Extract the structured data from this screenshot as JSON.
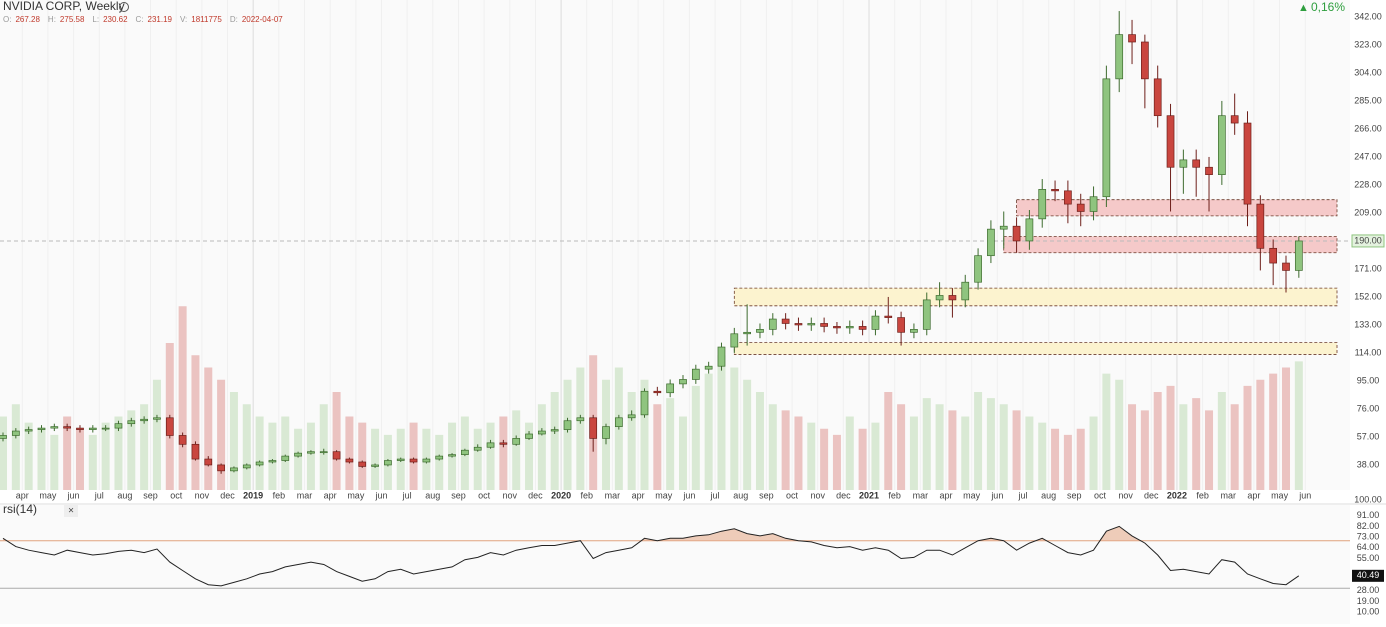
{
  "chart_data": {
    "type": "candlestick",
    "title": "NVIDIA CORP, Weekly",
    "info": [
      {
        "label": "O:",
        "value": "267.28"
      },
      {
        "label": "H:",
        "value": "275.58"
      },
      {
        "label": "L:",
        "value": "230.62"
      },
      {
        "label": "C:",
        "value": "231.19"
      },
      {
        "label": "V:",
        "value": "1811775"
      },
      {
        "label": "D:",
        "value": "2022-04-07"
      }
    ],
    "change": "0,16%",
    "last_price_label": "190.00",
    "volume_scale_label": "100.00",
    "up_color": "#8fc47f",
    "down_color": "#c9463f",
    "volume_ylim": [
      0,
      400
    ],
    "ylim": [
      21,
      353.5
    ],
    "yticks": [
      {
        "value": 38,
        "label": "38.00"
      },
      {
        "value": 57,
        "label": "57.00"
      },
      {
        "value": 76,
        "label": "76.00"
      },
      {
        "value": 95,
        "label": "95.00"
      },
      {
        "value": 114,
        "label": "114.00"
      },
      {
        "value": 133,
        "label": "133.00"
      },
      {
        "value": 152,
        "label": "152.00"
      },
      {
        "value": 171,
        "label": "171.00"
      },
      {
        "value": 209,
        "label": "209.00"
      },
      {
        "value": 228,
        "label": "228.00"
      },
      {
        "value": 247,
        "label": "247.00"
      },
      {
        "value": 266,
        "label": "266.00"
      },
      {
        "value": 285,
        "label": "285.00"
      },
      {
        "value": 304,
        "label": "304.00"
      },
      {
        "value": 323,
        "label": "323.00"
      },
      {
        "value": 342,
        "label": "342.00"
      }
    ],
    "xticks": [
      {
        "value": 1.5,
        "label": "apr"
      },
      {
        "value": 3.5,
        "label": "may"
      },
      {
        "value": 5.5,
        "label": "jun"
      },
      {
        "value": 7.5,
        "label": "jul"
      },
      {
        "value": 9.5,
        "label": "aug"
      },
      {
        "value": 11.5,
        "label": "sep"
      },
      {
        "value": 13.5,
        "label": "oct"
      },
      {
        "value": 15.5,
        "label": "nov"
      },
      {
        "value": 17.5,
        "label": "dec"
      },
      {
        "value": 19.5,
        "label": "2019"
      },
      {
        "value": 21.5,
        "label": "feb"
      },
      {
        "value": 23.5,
        "label": "mar"
      },
      {
        "value": 25.5,
        "label": "apr"
      },
      {
        "value": 27.5,
        "label": "may"
      },
      {
        "value": 29.5,
        "label": "jun"
      },
      {
        "value": 31.5,
        "label": "jul"
      },
      {
        "value": 33.5,
        "label": "aug"
      },
      {
        "value": 35.5,
        "label": "sep"
      },
      {
        "value": 37.5,
        "label": "oct"
      },
      {
        "value": 39.5,
        "label": "nov"
      },
      {
        "value": 41.5,
        "label": "dec"
      },
      {
        "value": 43.5,
        "label": "2020"
      },
      {
        "value": 45.5,
        "label": "feb"
      },
      {
        "value": 47.5,
        "label": "mar"
      },
      {
        "value": 49.5,
        "label": "apr"
      },
      {
        "value": 51.5,
        "label": "may"
      },
      {
        "value": 53.5,
        "label": "jun"
      },
      {
        "value": 55.5,
        "label": "jul"
      },
      {
        "value": 57.5,
        "label": "aug"
      },
      {
        "value": 59.5,
        "label": "sep"
      },
      {
        "value": 61.5,
        "label": "oct"
      },
      {
        "value": 63.5,
        "label": "nov"
      },
      {
        "value": 65.5,
        "label": "dec"
      },
      {
        "value": 67.5,
        "label": "2021"
      },
      {
        "value": 69.5,
        "label": "feb"
      },
      {
        "value": 71.5,
        "label": "mar"
      },
      {
        "value": 73.5,
        "label": "apr"
      },
      {
        "value": 75.5,
        "label": "may"
      },
      {
        "value": 77.5,
        "label": "jun"
      },
      {
        "value": 79.5,
        "label": "jul"
      },
      {
        "value": 81.5,
        "label": "aug"
      },
      {
        "value": 83.5,
        "label": "sep"
      },
      {
        "value": 85.5,
        "label": "oct"
      },
      {
        "value": 87.5,
        "label": "nov"
      },
      {
        "value": 89.5,
        "label": "dec"
      },
      {
        "value": 91.5,
        "label": "2022"
      },
      {
        "value": 93.5,
        "label": "feb"
      },
      {
        "value": 95.5,
        "label": "mar"
      },
      {
        "value": 97.5,
        "label": "apr"
      },
      {
        "value": 99.5,
        "label": "may"
      },
      {
        "value": 101.5,
        "label": "jun"
      }
    ],
    "zones": [
      {
        "from": 79,
        "low": 207,
        "high": 218,
        "color": "#f5c9c9"
      },
      {
        "from": 78,
        "low": 182,
        "high": 193,
        "color": "#f5c9c9"
      },
      {
        "from": 57,
        "low": 146,
        "high": 158,
        "color": "#fcf3cf"
      },
      {
        "from": 57,
        "low": 113,
        "high": 121,
        "color": "#fcf3cf"
      }
    ],
    "open": [
      56,
      58,
      61,
      62,
      63,
      64,
      63,
      62,
      63,
      63,
      66,
      68,
      69,
      70,
      58,
      52,
      42,
      38,
      34,
      36,
      38,
      40,
      41,
      44,
      46,
      47,
      47,
      42,
      40,
      37,
      38,
      41,
      42,
      40,
      42,
      44,
      45,
      48,
      50,
      53,
      52,
      56,
      59,
      61,
      62,
      68,
      70,
      56,
      64,
      70,
      72,
      88,
      87,
      93,
      96,
      103,
      105,
      118,
      127,
      128,
      130,
      137,
      134,
      133,
      134,
      132,
      131,
      132,
      130,
      139,
      138,
      128,
      130,
      150,
      153,
      150,
      162,
      180,
      198,
      200,
      190,
      205,
      225,
      224,
      215,
      210,
      220,
      300,
      330,
      325,
      300,
      275,
      240,
      245,
      240,
      235,
      275,
      270,
      215,
      185,
      175,
      170
    ],
    "high": [
      60,
      63,
      64,
      65,
      66,
      66,
      65,
      65,
      65,
      68,
      70,
      71,
      72,
      72,
      60,
      54,
      44,
      39,
      37,
      39,
      41,
      42,
      45,
      47,
      48,
      49,
      48,
      43,
      41,
      39,
      42,
      43,
      43,
      43,
      45,
      46,
      49,
      52,
      55,
      55,
      58,
      61,
      63,
      64,
      70,
      72,
      72,
      66,
      72,
      75,
      90,
      91,
      96,
      99,
      106,
      108,
      121,
      131,
      147,
      134,
      141,
      141,
      138,
      138,
      138,
      135,
      136,
      136,
      143,
      152,
      142,
      134,
      155,
      162,
      158,
      167,
      185,
      204,
      210,
      206,
      211,
      232,
      231,
      231,
      222,
      227,
      309,
      346,
      340,
      330,
      309,
      283,
      252,
      252,
      247,
      285,
      290,
      278,
      221,
      191,
      180,
      193
    ],
    "low": [
      54,
      56,
      59,
      60,
      61,
      61,
      60,
      60,
      61,
      61,
      64,
      66,
      67,
      56,
      50,
      41,
      37,
      32,
      33,
      35,
      37,
      39,
      40,
      43,
      45,
      45,
      41,
      39,
      36,
      36,
      37,
      40,
      39,
      39,
      41,
      43,
      44,
      47,
      49,
      50,
      51,
      55,
      58,
      59,
      60,
      66,
      47,
      52,
      62,
      68,
      70,
      85,
      84,
      90,
      93,
      100,
      102,
      114,
      119,
      124,
      126,
      130,
      129,
      129,
      128,
      127,
      127,
      126,
      126,
      134,
      119,
      124,
      126,
      145,
      138,
      145,
      157,
      175,
      185,
      182,
      184,
      199,
      217,
      202,
      200,
      204,
      213,
      291,
      310,
      280,
      267,
      210,
      222,
      220,
      210,
      228,
      262,
      200,
      170,
      160,
      155,
      165
    ],
    "close": [
      58,
      61,
      62,
      63,
      64,
      63,
      62,
      63,
      63,
      66,
      68,
      69,
      70,
      58,
      52,
      42,
      38,
      34,
      36,
      38,
      40,
      41,
      44,
      46,
      47,
      47,
      42,
      40,
      37,
      38,
      41,
      42,
      40,
      42,
      44,
      45,
      48,
      50,
      53,
      52,
      56,
      59,
      61,
      62,
      68,
      70,
      56,
      64,
      70,
      72,
      88,
      87,
      93,
      96,
      103,
      105,
      118,
      127,
      128,
      130,
      137,
      134,
      133,
      134,
      132,
      131,
      132,
      130,
      139,
      138,
      128,
      130,
      150,
      153,
      150,
      162,
      180,
      198,
      200,
      190,
      205,
      225,
      224,
      215,
      210,
      220,
      300,
      330,
      325,
      300,
      275,
      240,
      245,
      240,
      235,
      275,
      270,
      215,
      185,
      175,
      170,
      190
    ],
    "volume": [
      60,
      70,
      55,
      50,
      45,
      60,
      50,
      45,
      55,
      60,
      65,
      70,
      90,
      120,
      150,
      110,
      100,
      90,
      80,
      70,
      60,
      55,
      60,
      50,
      55,
      70,
      80,
      60,
      55,
      50,
      45,
      50,
      55,
      50,
      45,
      55,
      60,
      50,
      55,
      60,
      65,
      55,
      70,
      80,
      90,
      100,
      110,
      90,
      100,
      80,
      90,
      70,
      75,
      60,
      85,
      95,
      110,
      100,
      90,
      80,
      70,
      65,
      60,
      55,
      50,
      45,
      60,
      50,
      55,
      80,
      70,
      60,
      75,
      70,
      65,
      60,
      80,
      75,
      70,
      65,
      60,
      55,
      50,
      45,
      50,
      60,
      95,
      90,
      70,
      65,
      80,
      85,
      70,
      75,
      65,
      80,
      70,
      85,
      90,
      95,
      100,
      105
    ],
    "rsi_name": "rsi(14)",
    "rsi_ylim": [
      0,
      100
    ],
    "rsi_bands": [
      70,
      30
    ],
    "rsi_yticks": [
      {
        "value": 91,
        "label": "91.00"
      },
      {
        "value": 82,
        "label": "82.00"
      },
      {
        "value": 73,
        "label": "73.00"
      },
      {
        "value": 64,
        "label": "64.00"
      },
      {
        "value": 55,
        "label": "55.00"
      },
      {
        "value": 28,
        "label": "28.00"
      },
      {
        "value": 19,
        "label": "19.00"
      },
      {
        "value": 10,
        "label": "10.00"
      }
    ],
    "rsi": [
      72,
      65,
      62,
      60,
      58,
      62,
      60,
      58,
      59,
      61,
      62,
      60,
      63,
      52,
      45,
      38,
      33,
      32,
      35,
      38,
      42,
      44,
      48,
      50,
      52,
      50,
      44,
      40,
      36,
      38,
      44,
      46,
      42,
      44,
      46,
      48,
      54,
      56,
      60,
      58,
      62,
      64,
      66,
      66,
      68,
      70,
      55,
      60,
      62,
      64,
      72,
      70,
      72,
      72,
      74,
      75,
      78,
      80,
      76,
      74,
      76,
      72,
      70,
      69,
      66,
      64,
      65,
      62,
      64,
      62,
      55,
      56,
      62,
      62,
      58,
      64,
      70,
      72,
      70,
      62,
      68,
      72,
      66,
      60,
      58,
      62,
      78,
      82,
      74,
      68,
      58,
      45,
      46,
      44,
      42,
      54,
      52,
      42,
      38,
      34,
      33,
      40.49
    ]
  }
}
